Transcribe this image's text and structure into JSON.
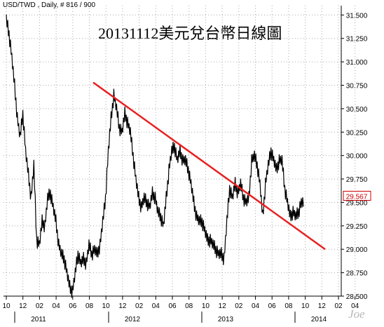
{
  "header": {
    "text": "USD/TWD , Daily, # 816 / 900"
  },
  "watermark": {
    "text": "Joe"
  },
  "chart_data": {
    "type": "line",
    "title": "20131112美元兌台幣日線圖",
    "symbol": "USD/TWD",
    "interval": "Daily",
    "ylim": [
      28.5,
      31.6
    ],
    "y_ticks": [
      "31.500",
      "31.250",
      "31.000",
      "30.750",
      "30.500",
      "30.250",
      "30.000",
      "29.750",
      "29.500",
      "29.250",
      "29.000",
      "28.750",
      "28.500"
    ],
    "x_ticks": [
      "10",
      "12",
      "02",
      "04",
      "06",
      "08",
      "10",
      "12",
      "02",
      "04",
      "06",
      "08",
      "10",
      "12",
      "02",
      "04",
      "06",
      "08",
      "10",
      "12",
      "02",
      "04"
    ],
    "year_labels": [
      "2011",
      "2012",
      "2013",
      "2014"
    ],
    "last_value": "29.567",
    "series": [
      {
        "values": [
          31.45,
          31.3,
          31.05,
          30.75,
          30.4,
          30.2,
          30.45,
          30.05,
          29.8,
          29.55,
          29.9,
          29.1,
          29.05,
          29.3,
          29.25,
          29.55,
          29.6,
          29.45,
          29.3,
          29.05,
          28.95,
          28.9,
          28.75,
          28.6,
          28.55,
          28.75,
          28.95,
          28.85,
          28.9,
          28.85,
          29.05,
          28.95,
          29.0,
          28.95,
          29.05,
          29.3,
          29.55,
          30.05,
          30.4,
          30.65,
          30.5,
          30.3,
          30.25,
          30.45,
          30.35,
          30.25,
          30.0,
          29.75,
          29.55,
          29.45,
          29.55,
          29.5,
          29.45,
          29.6,
          29.55,
          29.4,
          29.35,
          29.25,
          29.55,
          29.85,
          30.05,
          30.1,
          29.95,
          30.05,
          29.95,
          29.95,
          29.85,
          29.7,
          29.5,
          29.35,
          29.3,
          29.3,
          29.2,
          29.1,
          29.1,
          29.05,
          29.0,
          28.95,
          28.95,
          28.9,
          29.3,
          29.65,
          29.55,
          29.7,
          29.6,
          29.7,
          29.55,
          29.5,
          29.55,
          29.95,
          30.0,
          29.9,
          29.7,
          29.35,
          29.7,
          29.9,
          30.05,
          29.95,
          29.85,
          29.95,
          29.95,
          29.65,
          29.5,
          29.35,
          29.4,
          29.35,
          29.4,
          29.5
        ]
      }
    ],
    "trendline": {
      "start_value": 30.78,
      "end_value": 29.0
    }
  }
}
